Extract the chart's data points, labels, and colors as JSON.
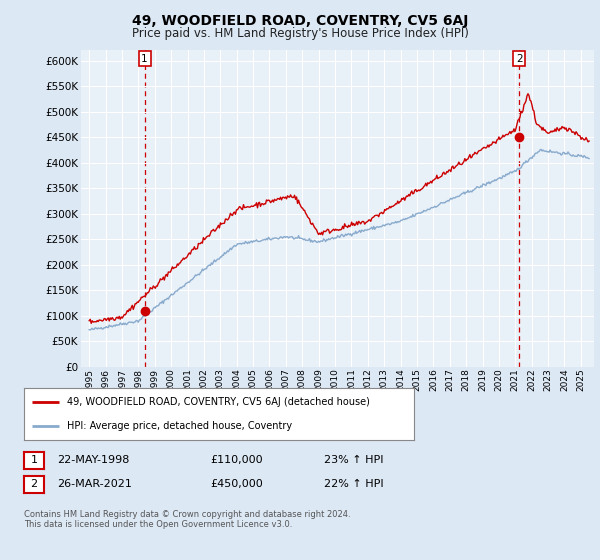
{
  "title": "49, WOODFIELD ROAD, COVENTRY, CV5 6AJ",
  "subtitle": "Price paid vs. HM Land Registry's House Price Index (HPI)",
  "bg_color": "#dde8f5",
  "plot_bg_color": "#e8f0f8",
  "grid_color": "#ffffff",
  "red_line_color": "#cc0000",
  "blue_line_color": "#88aacc",
  "sale1_date_num": 1998.38,
  "sale1_price": 110000,
  "sale2_date_num": 2021.23,
  "sale2_price": 450000,
  "ylim_min": 0,
  "ylim_max": 620000,
  "xlim_min": 1994.5,
  "xlim_max": 2025.8,
  "legend_line1": "49, WOODFIELD ROAD, COVENTRY, CV5 6AJ (detached house)",
  "legend_line2": "HPI: Average price, detached house, Coventry",
  "footnote": "Contains HM Land Registry data © Crown copyright and database right 2024.\nThis data is licensed under the Open Government Licence v3.0.",
  "table_row1": [
    "1",
    "22-MAY-1998",
    "£110,000",
    "23% ↑ HPI"
  ],
  "table_row2": [
    "2",
    "26-MAR-2021",
    "£450,000",
    "22% ↑ HPI"
  ],
  "yticks": [
    0,
    50000,
    100000,
    150000,
    200000,
    250000,
    300000,
    350000,
    400000,
    450000,
    500000,
    550000,
    600000
  ],
  "xticks": [
    1995,
    1996,
    1997,
    1998,
    1999,
    2000,
    2001,
    2002,
    2003,
    2004,
    2005,
    2006,
    2007,
    2008,
    2009,
    2010,
    2011,
    2012,
    2013,
    2014,
    2015,
    2016,
    2017,
    2018,
    2019,
    2020,
    2021,
    2022,
    2023,
    2024,
    2025
  ]
}
